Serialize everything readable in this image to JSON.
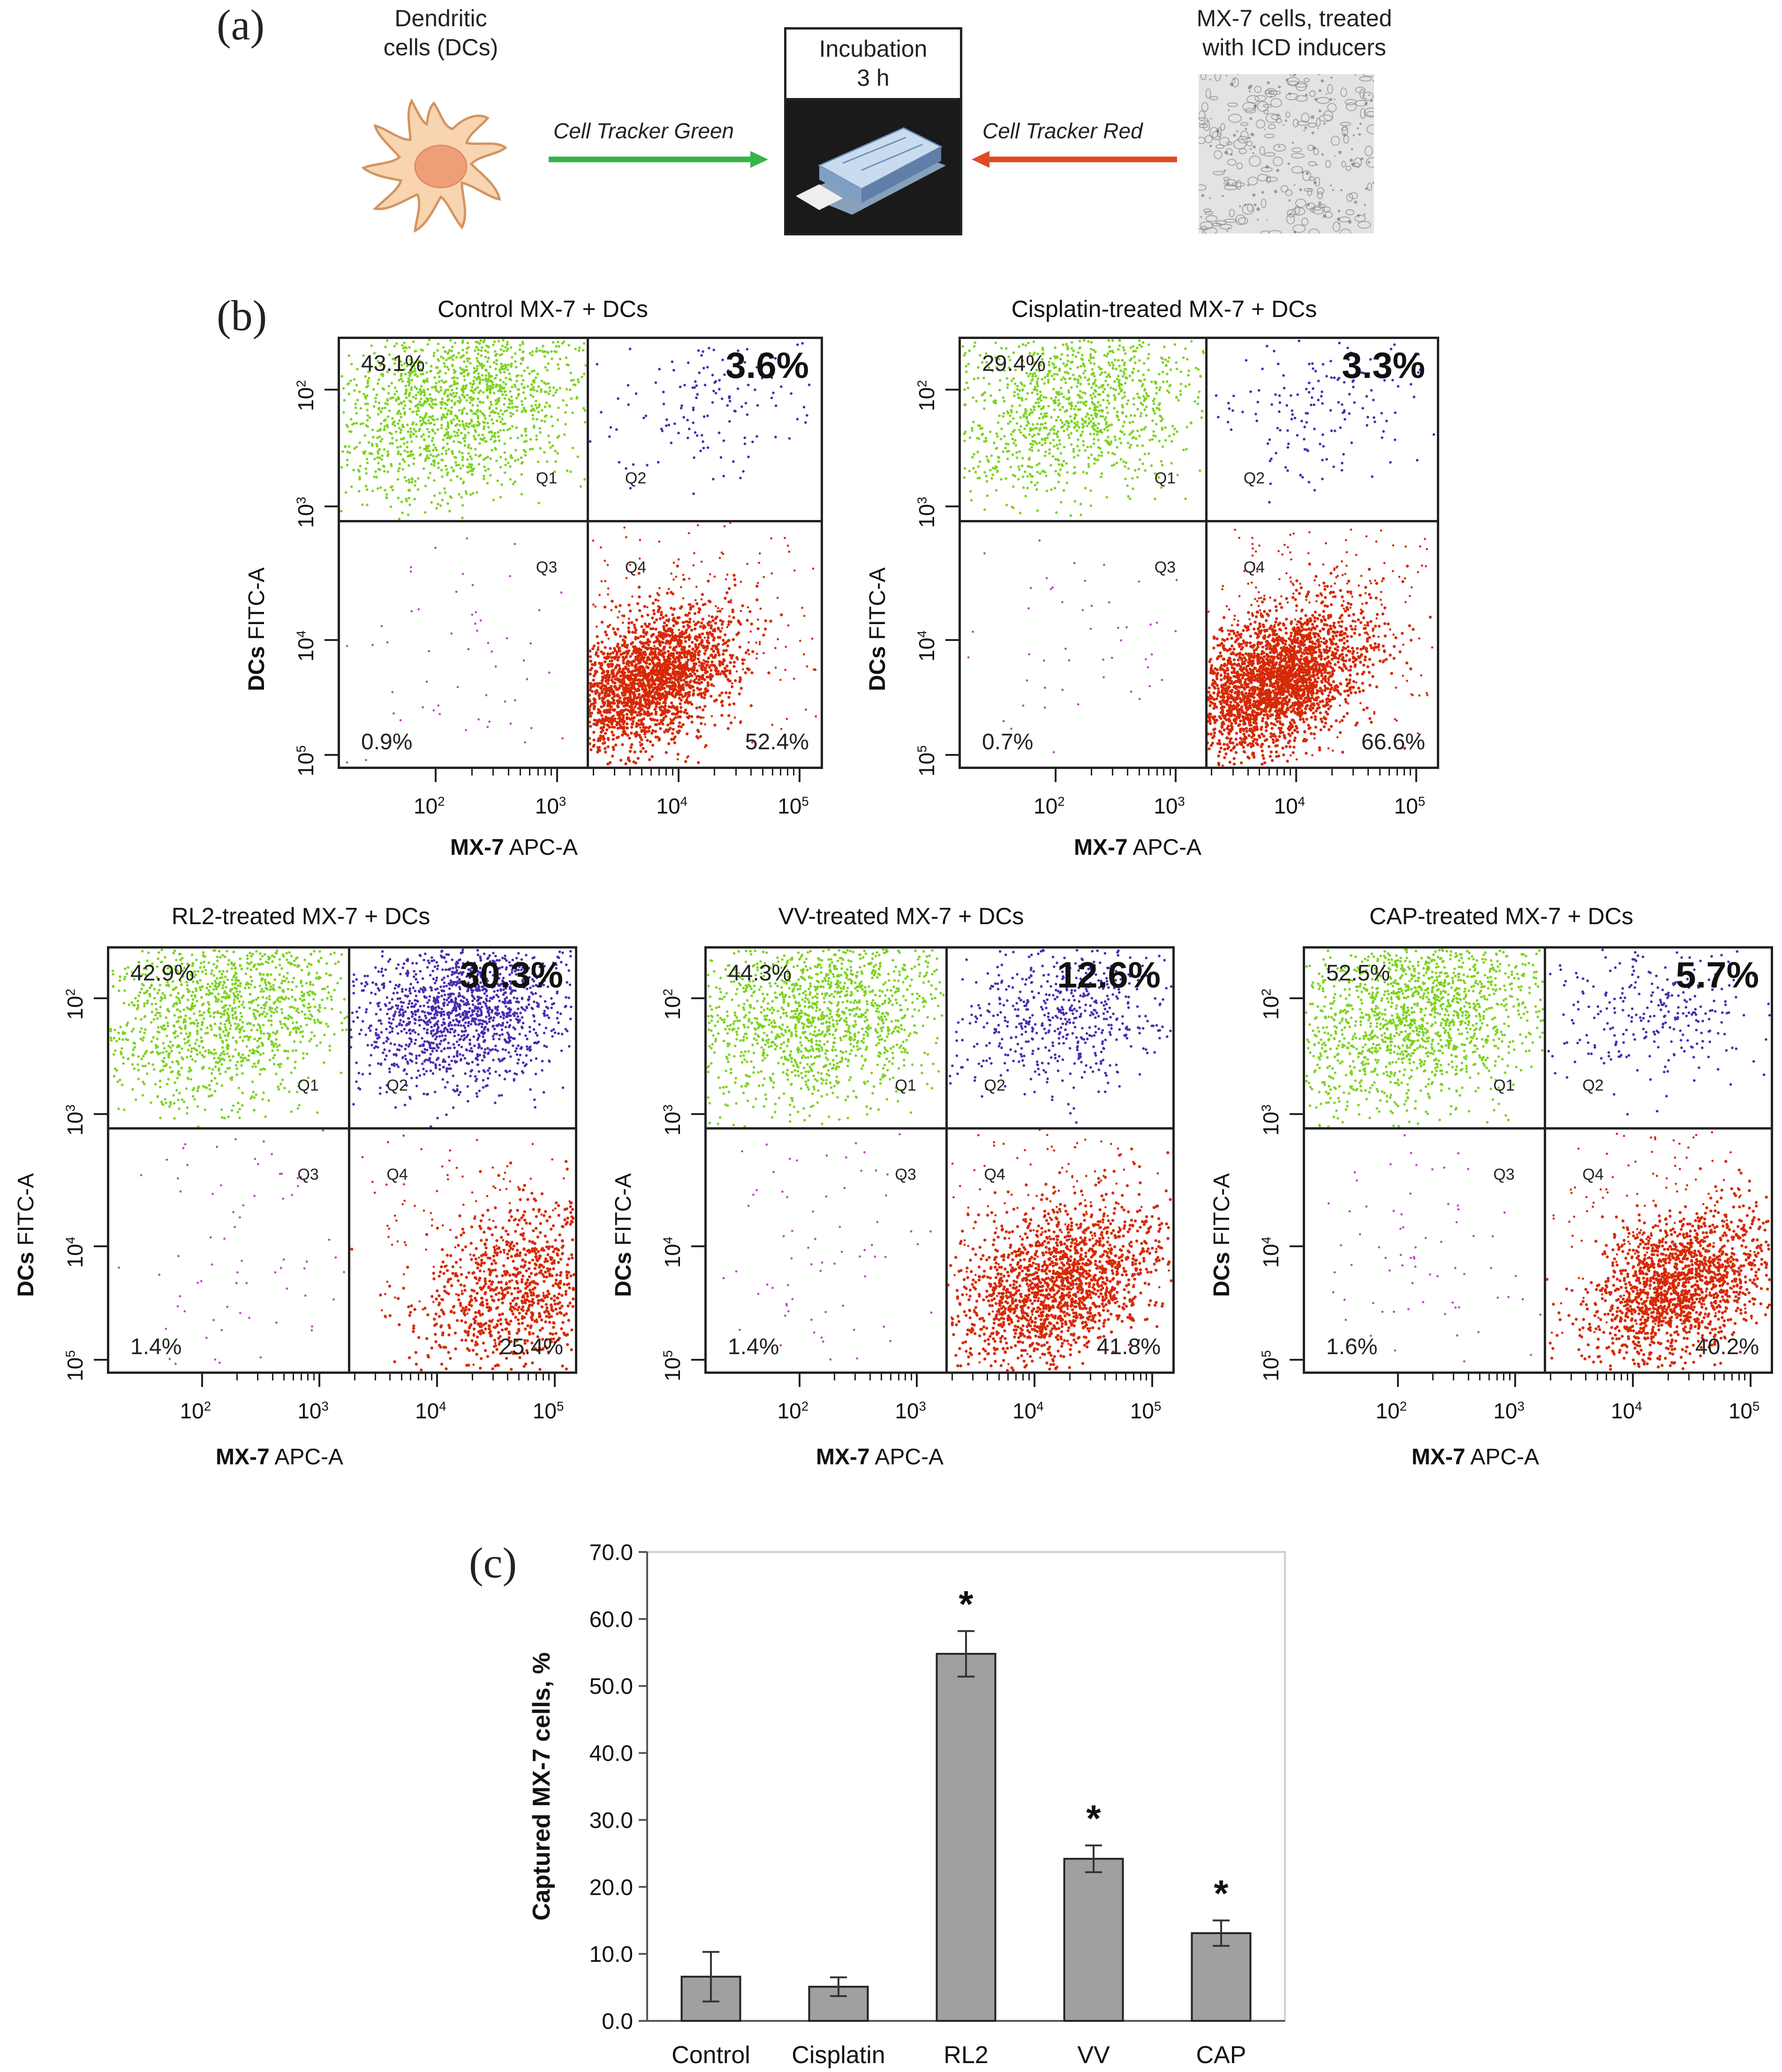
{
  "panel_labels": {
    "a": "(a)",
    "b": "(b)",
    "c": "(c)"
  },
  "schematic": {
    "dc_caption_1": "Dendritic",
    "dc_caption_2": "cells (DCs)",
    "tumor_caption_1": "MX-7 cells, treated",
    "tumor_caption_2": "with ICD inducers",
    "incubation_1": "Incubation",
    "incubation_2": "3 h",
    "green_label": "Cell Tracker Green",
    "red_label": "Cell Tracker Red",
    "colors": {
      "dc_fill": "#f8d4b0",
      "dc_stroke": "#d29560",
      "nucleus": "#ef9f78",
      "green_arrow": "#35b44a",
      "red_arrow": "#e04a22"
    }
  },
  "axis_labels": {
    "y_bold": "DCs",
    "y_rest": "FITC-A",
    "x_bold": "MX-7",
    "x_rest": "APC-A"
  },
  "tick_labels": [
    "10",
    "10",
    "10",
    "10"
  ],
  "tick_exponents": [
    "2",
    "3",
    "4",
    "5"
  ],
  "quadrant_names": [
    "Q1",
    "Q2",
    "Q3",
    "Q4"
  ],
  "flow_plots": [
    {
      "title": "Control MX-7 + DCs",
      "q1": "43.1%",
      "q2": "3.6%",
      "q3": "0.9%",
      "q4": "52.4%"
    },
    {
      "title": "Cisplatin-treated MX-7 + DCs",
      "q1": "29.4%",
      "q2": "3.3%",
      "q3": "0.7%",
      "q4": "66.6%"
    },
    {
      "title": "RL2-treated  MX-7 + DCs",
      "q1": "42.9%",
      "q2": "30.3%",
      "q3": "1.4%",
      "q4": "25.4%"
    },
    {
      "title": "VV-treated MX-7 + DCs",
      "q1": "44.3%",
      "q2": "12.6%",
      "q3": "1.4%",
      "q4": "41.8%"
    },
    {
      "title": "CAP-treated  MX-7 + DCs",
      "q1": "52.5%",
      "q2": "5.7%",
      "q3": "1.6%",
      "q4": "40.2%"
    }
  ],
  "dot_colors": {
    "green": "#7dd321",
    "purple": "#4a2ab0",
    "red": "#d62a06",
    "magenta": "#c040d0"
  },
  "chart_data": {
    "type": "bar",
    "title": "",
    "xlabel": "",
    "ylabel": "Captured MX-7 cells, %",
    "categories": [
      "Control",
      "Cisplatin",
      "RL2",
      "VV",
      "CAP"
    ],
    "values": [
      6.6,
      5.1,
      54.8,
      24.2,
      13.1
    ],
    "errors": [
      3.7,
      1.4,
      3.4,
      2.0,
      1.9
    ],
    "significance": [
      "",
      "",
      "*",
      "*",
      "*"
    ],
    "ylim": [
      0,
      70
    ],
    "yticks": [
      "0.0",
      "10.0",
      "20.0",
      "30.0",
      "40.0",
      "50.0",
      "60.0",
      "70.0"
    ],
    "bar_color": "#a0a0a0"
  }
}
